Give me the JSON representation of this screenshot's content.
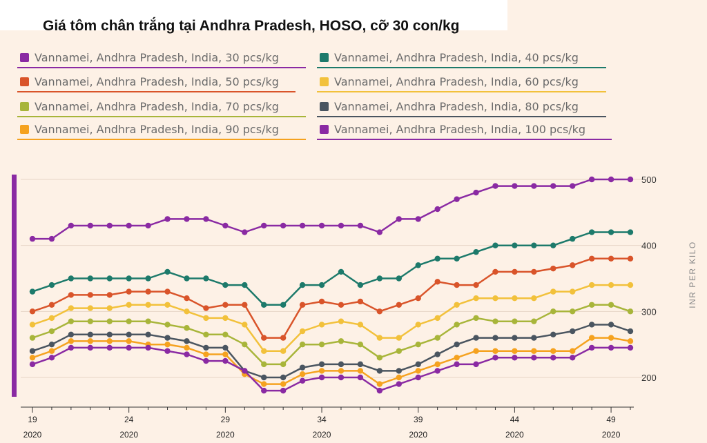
{
  "title": "Giá tôm chân trắng tại Andhra Pradesh, HOSO, cỡ 30 con/kg",
  "chart_data": {
    "type": "line",
    "title": "Giá tôm chân trắng tại Andhra Pradesh, HOSO, cỡ 30 con/kg",
    "ylabel": "INR PER KILO",
    "xlabel": "",
    "ylim": [
      160,
      520
    ],
    "yticks": [
      200,
      300,
      400,
      500
    ],
    "x": [
      19,
      20,
      21,
      22,
      23,
      24,
      25,
      26,
      27,
      28,
      29,
      30,
      31,
      32,
      33,
      34,
      35,
      36,
      37,
      38,
      39,
      40,
      41,
      42,
      43,
      44,
      45,
      46,
      47,
      48,
      49,
      50
    ],
    "xticks": [
      {
        "week": 19,
        "label": "19",
        "year": "2020"
      },
      {
        "week": 24,
        "label": "24",
        "year": "2020"
      },
      {
        "week": 29,
        "label": "29",
        "year": "2020"
      },
      {
        "week": 34,
        "label": "34",
        "year": "2020"
      },
      {
        "week": 39,
        "label": "39",
        "year": "2020"
      },
      {
        "week": 44,
        "label": "44",
        "year": "2020"
      },
      {
        "week": 49,
        "label": "49",
        "year": "2020"
      }
    ],
    "series": [
      {
        "name": "Vannamei, Andhra Pradesh, India, 30 pcs/kg",
        "color": "#8a2aa3",
        "values": [
          410,
          410,
          430,
          430,
          430,
          430,
          430,
          440,
          440,
          440,
          430,
          420,
          430,
          430,
          430,
          430,
          430,
          430,
          420,
          440,
          440,
          455,
          470,
          480,
          490,
          490,
          490,
          490,
          490,
          500,
          500,
          500
        ]
      },
      {
        "name": "Vannamei, Andhra Pradesh, India, 40 pcs/kg",
        "color": "#1d7a6b",
        "values": [
          330,
          340,
          350,
          350,
          350,
          350,
          350,
          360,
          350,
          350,
          340,
          340,
          310,
          310,
          340,
          340,
          360,
          340,
          350,
          350,
          370,
          380,
          380,
          390,
          400,
          400,
          400,
          400,
          410,
          420,
          420,
          420
        ]
      },
      {
        "name": "Vannamei, Andhra Pradesh, India, 50 pcs/kg",
        "color": "#d9542a",
        "values": [
          300,
          310,
          325,
          325,
          325,
          330,
          330,
          330,
          320,
          305,
          310,
          310,
          260,
          260,
          310,
          315,
          310,
          315,
          300,
          310,
          320,
          345,
          340,
          340,
          360,
          360,
          360,
          365,
          370,
          380,
          380,
          380
        ]
      },
      {
        "name": "Vannamei, Andhra Pradesh, India, 60 pcs/kg",
        "color": "#f2c13b",
        "values": [
          280,
          290,
          305,
          305,
          305,
          310,
          310,
          310,
          300,
          290,
          290,
          280,
          240,
          240,
          270,
          280,
          285,
          280,
          260,
          260,
          280,
          290,
          310,
          320,
          320,
          320,
          320,
          330,
          330,
          340,
          340,
          340
        ]
      },
      {
        "name": "Vannamei, Andhra Pradesh, India, 70 pcs/kg",
        "color": "#a8b53a",
        "values": [
          260,
          270,
          285,
          285,
          285,
          285,
          285,
          280,
          275,
          265,
          265,
          250,
          220,
          220,
          250,
          250,
          255,
          250,
          230,
          240,
          250,
          260,
          280,
          290,
          285,
          285,
          285,
          300,
          300,
          310,
          310,
          300
        ]
      },
      {
        "name": "Vannamei, Andhra Pradesh, India, 80 pcs/kg",
        "color": "#4a5560",
        "values": [
          240,
          250,
          265,
          265,
          265,
          265,
          265,
          260,
          255,
          245,
          245,
          210,
          200,
          200,
          215,
          220,
          220,
          220,
          210,
          210,
          220,
          235,
          250,
          260,
          260,
          260,
          260,
          265,
          270,
          280,
          280,
          270
        ]
      },
      {
        "name": "Vannamei, Andhra Pradesh, India, 90 pcs/kg",
        "color": "#f5a21f",
        "values": [
          230,
          240,
          255,
          255,
          255,
          255,
          250,
          250,
          245,
          235,
          235,
          205,
          190,
          190,
          205,
          210,
          210,
          210,
          190,
          200,
          210,
          220,
          230,
          240,
          240,
          240,
          240,
          240,
          240,
          260,
          260,
          255
        ]
      },
      {
        "name": "Vannamei, Andhra Pradesh, India, 100 pcs/kg",
        "color": "#8a2aa3",
        "values": [
          220,
          230,
          245,
          245,
          245,
          245,
          245,
          240,
          235,
          225,
          225,
          210,
          180,
          180,
          195,
          200,
          200,
          200,
          180,
          190,
          200,
          210,
          220,
          220,
          230,
          230,
          230,
          230,
          230,
          245,
          245,
          245
        ]
      }
    ]
  }
}
